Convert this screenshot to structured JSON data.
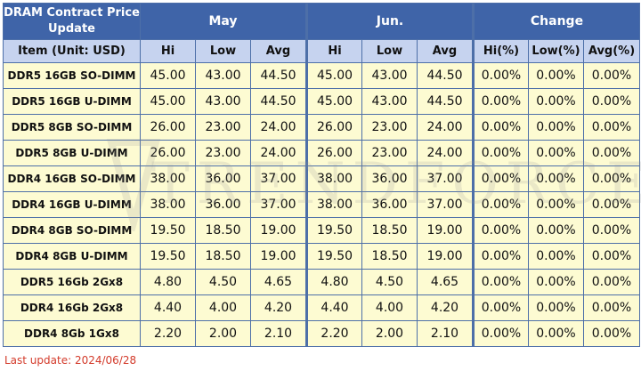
{
  "header": {
    "title": "DRAM Contract Price Update",
    "item_label": "Item (Unit: USD)",
    "groups": [
      "May",
      "Jun.",
      "Change"
    ],
    "subheaders": [
      "Hi",
      "Low",
      "Avg",
      "Hi",
      "Low",
      "Avg",
      "Hi(%)",
      "Low(%)",
      "Avg(%)"
    ]
  },
  "rows": [
    {
      "item": "DDR5 16GB SO-DIMM",
      "cells": [
        "45.00",
        "43.00",
        "44.50",
        "45.00",
        "43.00",
        "44.50",
        "0.00%",
        "0.00%",
        "0.00%"
      ]
    },
    {
      "item": "DDR5 16GB U-DIMM",
      "cells": [
        "45.00",
        "43.00",
        "44.50",
        "45.00",
        "43.00",
        "44.50",
        "0.00%",
        "0.00%",
        "0.00%"
      ]
    },
    {
      "item": "DDR5 8GB SO-DIMM",
      "cells": [
        "26.00",
        "23.00",
        "24.00",
        "26.00",
        "23.00",
        "24.00",
        "0.00%",
        "0.00%",
        "0.00%"
      ]
    },
    {
      "item": "DDR5 8GB U-DIMM",
      "cells": [
        "26.00",
        "23.00",
        "24.00",
        "26.00",
        "23.00",
        "24.00",
        "0.00%",
        "0.00%",
        "0.00%"
      ]
    },
    {
      "item": "DDR4 16GB SO-DIMM",
      "cells": [
        "38.00",
        "36.00",
        "37.00",
        "38.00",
        "36.00",
        "37.00",
        "0.00%",
        "0.00%",
        "0.00%"
      ]
    },
    {
      "item": "DDR4 16GB U-DIMM",
      "cells": [
        "38.00",
        "36.00",
        "37.00",
        "38.00",
        "36.00",
        "37.00",
        "0.00%",
        "0.00%",
        "0.00%"
      ]
    },
    {
      "item": "DDR4 8GB SO-DIMM",
      "cells": [
        "19.50",
        "18.50",
        "19.00",
        "19.50",
        "18.50",
        "19.00",
        "0.00%",
        "0.00%",
        "0.00%"
      ]
    },
    {
      "item": "DDR4 8GB U-DIMM",
      "cells": [
        "19.50",
        "18.50",
        "19.00",
        "19.50",
        "18.50",
        "19.00",
        "0.00%",
        "0.00%",
        "0.00%"
      ]
    },
    {
      "item": "DDR5 16Gb 2Gx8",
      "cells": [
        "4.80",
        "4.50",
        "4.65",
        "4.80",
        "4.50",
        "4.65",
        "0.00%",
        "0.00%",
        "0.00%"
      ]
    },
    {
      "item": "DDR4 16Gb 2Gx8",
      "cells": [
        "4.40",
        "4.00",
        "4.20",
        "4.40",
        "4.00",
        "4.20",
        "0.00%",
        "0.00%",
        "0.00%"
      ]
    },
    {
      "item": "DDR4 8Gb 1Gx8",
      "cells": [
        "2.20",
        "2.00",
        "2.10",
        "2.20",
        "2.00",
        "2.10",
        "0.00%",
        "0.00%",
        "0.00%"
      ]
    }
  ],
  "footer": {
    "last_update": "Last update: 2024/06/28"
  },
  "watermark": "TRENDFORCE",
  "colors": {
    "header_bg": "#3f64a8",
    "subheader_bg": "#c6d3ef",
    "cell_bg": "#fdfbd2",
    "border": "#4d6fa8",
    "footer_text": "#d33a2a"
  },
  "chart_data": {
    "type": "table",
    "title": "DRAM Contract Price Update",
    "columns": [
      "Item (Unit: USD)",
      "May Hi",
      "May Low",
      "May Avg",
      "Jun. Hi",
      "Jun. Low",
      "Jun. Avg",
      "Change Hi(%)",
      "Change Low(%)",
      "Change Avg(%)"
    ],
    "rows": [
      [
        "DDR5 16GB SO-DIMM",
        45.0,
        43.0,
        44.5,
        45.0,
        43.0,
        44.5,
        "0.00%",
        "0.00%",
        "0.00%"
      ],
      [
        "DDR5 16GB U-DIMM",
        45.0,
        43.0,
        44.5,
        45.0,
        43.0,
        44.5,
        "0.00%",
        "0.00%",
        "0.00%"
      ],
      [
        "DDR5 8GB SO-DIMM",
        26.0,
        23.0,
        24.0,
        26.0,
        23.0,
        24.0,
        "0.00%",
        "0.00%",
        "0.00%"
      ],
      [
        "DDR5 8GB U-DIMM",
        26.0,
        23.0,
        24.0,
        26.0,
        23.0,
        24.0,
        "0.00%",
        "0.00%",
        "0.00%"
      ],
      [
        "DDR4 16GB SO-DIMM",
        38.0,
        36.0,
        37.0,
        38.0,
        36.0,
        37.0,
        "0.00%",
        "0.00%",
        "0.00%"
      ],
      [
        "DDR4 16GB U-DIMM",
        38.0,
        36.0,
        37.0,
        38.0,
        36.0,
        37.0,
        "0.00%",
        "0.00%",
        "0.00%"
      ],
      [
        "DDR4 8GB SO-DIMM",
        19.5,
        18.5,
        19.0,
        19.5,
        18.5,
        19.0,
        "0.00%",
        "0.00%",
        "0.00%"
      ],
      [
        "DDR4 8GB U-DIMM",
        19.5,
        18.5,
        19.0,
        19.5,
        18.5,
        19.0,
        "0.00%",
        "0.00%",
        "0.00%"
      ],
      [
        "DDR5 16Gb 2Gx8",
        4.8,
        4.5,
        4.65,
        4.8,
        4.5,
        4.65,
        "0.00%",
        "0.00%",
        "0.00%"
      ],
      [
        "DDR4 16Gb 2Gx8",
        4.4,
        4.0,
        4.2,
        4.4,
        4.0,
        4.2,
        "0.00%",
        "0.00%",
        "0.00%"
      ],
      [
        "DDR4 8Gb 1Gx8",
        2.2,
        2.0,
        2.1,
        2.2,
        2.0,
        2.1,
        "0.00%",
        "0.00%",
        "0.00%"
      ]
    ]
  }
}
